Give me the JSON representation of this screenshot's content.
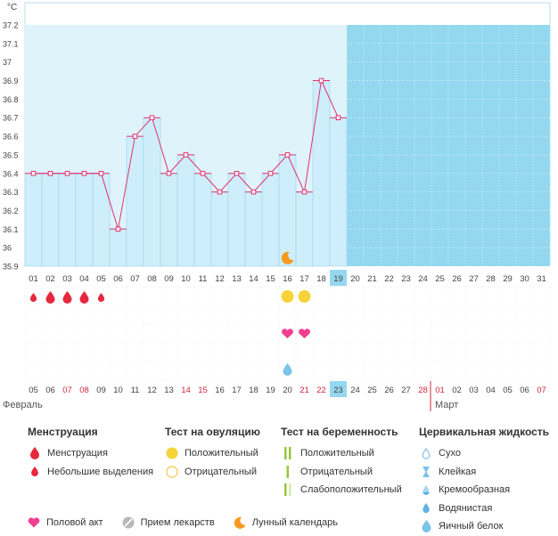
{
  "chart_data": {
    "type": "line",
    "unit_label": "°C",
    "y_ticks": [
      "37.2",
      "37.1",
      "37",
      "36.9",
      "36.8",
      "36.7",
      "36.6",
      "36.5",
      "36.4",
      "36.3",
      "36.2",
      "36.1",
      "36",
      "35.9"
    ],
    "ylim": [
      35.9,
      37.2
    ],
    "cycle_days": [
      "01",
      "02",
      "03",
      "04",
      "05",
      "06",
      "07",
      "08",
      "09",
      "10",
      "11",
      "12",
      "13",
      "14",
      "15",
      "16",
      "17",
      "18",
      "19",
      "20",
      "21",
      "22",
      "23",
      "24",
      "25",
      "26",
      "27",
      "28",
      "29",
      "30",
      "31"
    ],
    "temperatures": [
      36.4,
      36.4,
      36.4,
      36.4,
      36.4,
      36.1,
      36.6,
      36.7,
      36.4,
      36.5,
      36.4,
      36.3,
      36.4,
      36.3,
      36.4,
      36.5,
      36.3,
      36.9,
      36.7
    ],
    "current_day": "19",
    "accent_color": "#94d8f0",
    "line_color": "#e0336e",
    "bar_fill": "#cdeefa"
  },
  "markers": {
    "moon_day_index": 15,
    "menstruation": [
      {
        "day_index": 0,
        "type": "light"
      },
      {
        "day_index": 1,
        "type": "heavy"
      },
      {
        "day_index": 2,
        "type": "heavy"
      },
      {
        "day_index": 3,
        "type": "heavy"
      },
      {
        "day_index": 4,
        "type": "light"
      }
    ],
    "ovulation_positive": [
      15,
      16
    ],
    "intercourse": [
      15,
      16
    ],
    "cervical": [
      {
        "day_index": 15,
        "type": "egg-white"
      }
    ]
  },
  "calendar": {
    "dates": [
      {
        "d": "05",
        "w": false
      },
      {
        "d": "06",
        "w": false
      },
      {
        "d": "07",
        "w": true
      },
      {
        "d": "08",
        "w": true
      },
      {
        "d": "09",
        "w": false
      },
      {
        "d": "10",
        "w": false
      },
      {
        "d": "11",
        "w": false
      },
      {
        "d": "12",
        "w": false
      },
      {
        "d": "13",
        "w": false
      },
      {
        "d": "14",
        "w": true
      },
      {
        "d": "15",
        "w": true
      },
      {
        "d": "16",
        "w": false
      },
      {
        "d": "17",
        "w": false
      },
      {
        "d": "18",
        "w": false
      },
      {
        "d": "19",
        "w": false
      },
      {
        "d": "20",
        "w": false
      },
      {
        "d": "21",
        "w": true
      },
      {
        "d": "22",
        "w": true
      },
      {
        "d": "23",
        "w": false,
        "today": true
      },
      {
        "d": "24",
        "w": false
      },
      {
        "d": "25",
        "w": false
      },
      {
        "d": "26",
        "w": false
      },
      {
        "d": "27",
        "w": false
      },
      {
        "d": "28",
        "w": true
      },
      {
        "d": "01",
        "w": true,
        "month": true
      },
      {
        "d": "02",
        "w": false
      },
      {
        "d": "03",
        "w": false
      },
      {
        "d": "04",
        "w": false
      },
      {
        "d": "05",
        "w": false
      },
      {
        "d": "06",
        "w": false
      },
      {
        "d": "07",
        "w": true
      }
    ],
    "month_feb": "Февраль",
    "month_mar": "Март",
    "weekend_color": "#d0253f"
  },
  "legend": {
    "menstruation": {
      "title": "Менструация",
      "items": [
        "Менструация",
        "Небольшие выделения"
      ]
    },
    "ovulation": {
      "title": "Тест на овуляцию",
      "items": [
        "Положительный",
        "Отрицательный"
      ]
    },
    "pregnancy": {
      "title": "Тест на беременность",
      "items": [
        "Положительный",
        "Отрицательный",
        "Слабоположительный"
      ]
    },
    "cervical": {
      "title": "Цервикальная жидкость",
      "items": [
        "Сухо",
        "Клейкая",
        "Кремообразная",
        "Водянистая",
        "Яичный белок"
      ]
    },
    "bottom": [
      "Половой акт",
      "Прием лекарств",
      "Лунный календарь"
    ]
  }
}
